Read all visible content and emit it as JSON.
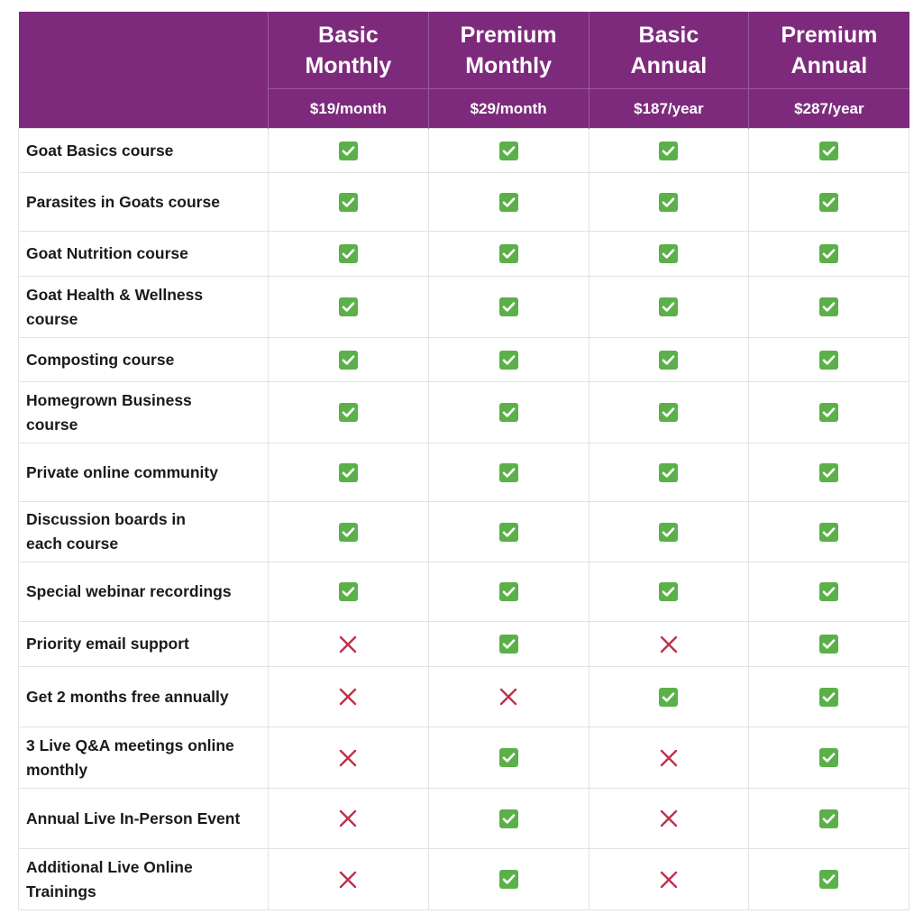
{
  "plans": [
    {
      "name_line1": "Basic",
      "name_line2": "Monthly",
      "price": "$19/month"
    },
    {
      "name_line1": "Premium",
      "name_line2": "Monthly",
      "price": "$29/month"
    },
    {
      "name_line1": "Basic",
      "name_line2": "Annual",
      "price": "$187/year"
    },
    {
      "name_line1": "Premium",
      "name_line2": "Annual",
      "price": "$287/year"
    }
  ],
  "colors": {
    "header_bg": "#7d2a7c",
    "header_text": "#ffffff",
    "check": "#5cb04a",
    "cross": "#c0304a"
  },
  "features": [
    {
      "label": "Goat Basics course",
      "included": [
        true,
        true,
        true,
        true
      ]
    },
    {
      "label": "Parasites in Goats course",
      "included": [
        true,
        true,
        true,
        true
      ]
    },
    {
      "label": "Goat Nutrition course",
      "included": [
        true,
        true,
        true,
        true
      ]
    },
    {
      "label": "Goat Health & Wellness course",
      "included": [
        true,
        true,
        true,
        true
      ]
    },
    {
      "label": "Composting course",
      "included": [
        true,
        true,
        true,
        true
      ]
    },
    {
      "label": "Homegrown Business course",
      "included": [
        true,
        true,
        true,
        true
      ]
    },
    {
      "label": "Private online community",
      "included": [
        true,
        true,
        true,
        true
      ]
    },
    {
      "label": "Discussion boards in each course",
      "included": [
        true,
        true,
        true,
        true
      ]
    },
    {
      "label": "Special webinar recordings",
      "included": [
        true,
        true,
        true,
        true
      ]
    },
    {
      "label": "Priority email support",
      "included": [
        false,
        true,
        false,
        true
      ]
    },
    {
      "label": "Get 2 months free annually",
      "included": [
        false,
        false,
        true,
        true
      ]
    },
    {
      "label": "3 Live Q&A meetings online monthly",
      "included": [
        false,
        true,
        false,
        true
      ]
    },
    {
      "label": "Annual Live In-Person Event",
      "included": [
        false,
        true,
        false,
        true
      ]
    },
    {
      "label": "Additional Live Online Trainings",
      "included": [
        false,
        true,
        false,
        true
      ]
    }
  ],
  "icons": {
    "included": "check-icon",
    "excluded": "cross-icon"
  }
}
